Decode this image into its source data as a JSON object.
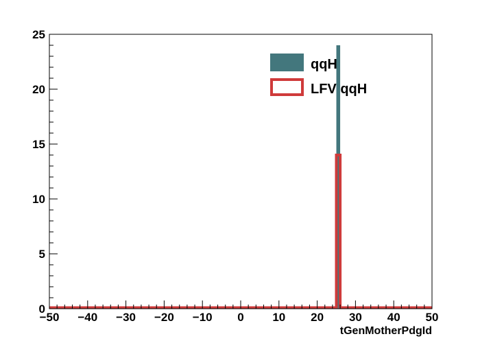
{
  "chart_data": {
    "type": "bar",
    "title": "",
    "xlabel": "tGenMotherPdgId",
    "ylabel": "",
    "xlim": [
      -50,
      50
    ],
    "ylim": [
      0,
      25
    ],
    "x_ticks": [
      -50,
      -40,
      -30,
      -20,
      -10,
      0,
      10,
      20,
      30,
      40,
      50
    ],
    "x_tick_labels": [
      "−50",
      "−40",
      "−30",
      "−20",
      "−10",
      "0",
      "10",
      "20",
      "30",
      "40",
      "50"
    ],
    "y_ticks": [
      0,
      5,
      10,
      15,
      20,
      25
    ],
    "y_tick_labels": [
      "0",
      "5",
      "10",
      "15",
      "20",
      "25"
    ],
    "bin_width": 1,
    "grid": false,
    "legend_position": "top-right",
    "series": [
      {
        "name": "qqH",
        "style": "filled",
        "color": "#43777d",
        "bins": [
          {
            "x_low": 25,
            "x_high": 26,
            "value": 24
          }
        ]
      },
      {
        "name": "LFV qqH",
        "style": "outline",
        "color": "#cf3a3a",
        "bins": [
          {
            "x_low": 25,
            "x_high": 26,
            "value": 14
          }
        ]
      }
    ]
  }
}
